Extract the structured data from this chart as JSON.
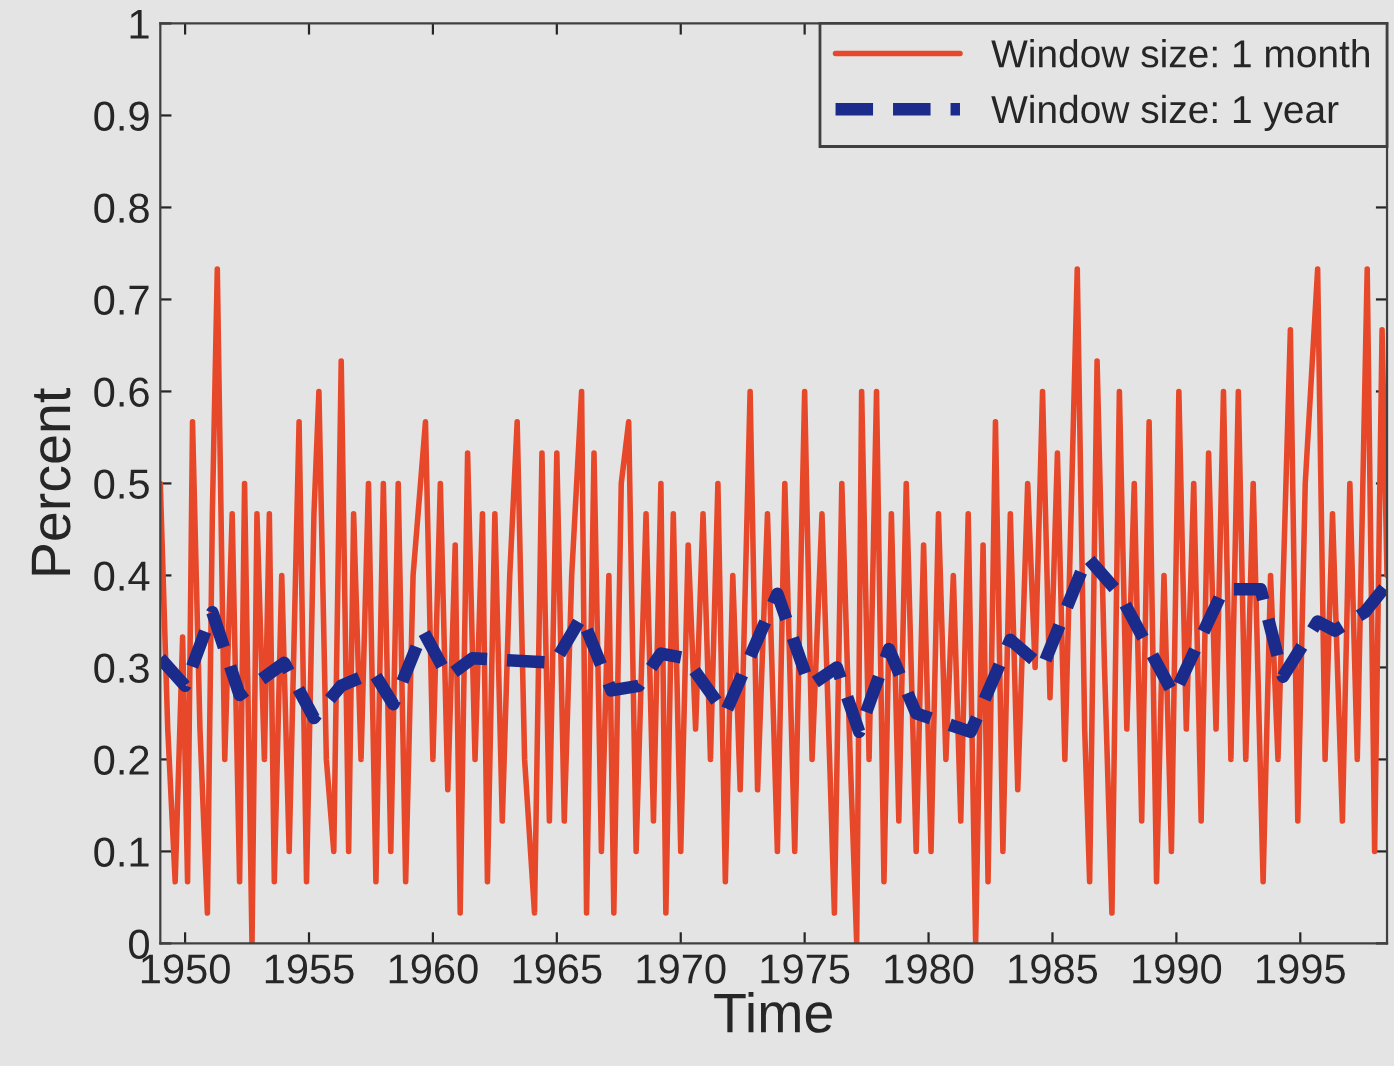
{
  "chart_data": {
    "type": "line",
    "xlabel": "Time",
    "ylabel": "Percent",
    "xlim": [
      1949,
      1998.5
    ],
    "xticks": [
      1950,
      1955,
      1960,
      1965,
      1970,
      1975,
      1980,
      1985,
      1990,
      1995
    ],
    "ylim": [
      0,
      1
    ],
    "yticks": [
      0,
      0.1,
      0.2,
      0.3,
      0.4,
      0.5,
      0.6,
      0.7,
      0.8,
      0.9,
      1
    ],
    "grid": false,
    "legend": "top right",
    "series": [
      {
        "name": "Window size: 1 month",
        "color": "#e8482a",
        "line_style": "solid",
        "x": [
          1949.0,
          1949.3,
          1949.6,
          1949.9,
          1950.1,
          1950.3,
          1950.6,
          1950.9,
          1951.1,
          1951.3,
          1951.6,
          1951.9,
          1952.2,
          1952.4,
          1952.7,
          1952.9,
          1953.2,
          1953.4,
          1953.6,
          1953.9,
          1954.2,
          1954.6,
          1954.9,
          1955.2,
          1955.4,
          1955.7,
          1956.0,
          1956.3,
          1956.6,
          1956.8,
          1957.1,
          1957.4,
          1957.7,
          1958.0,
          1958.3,
          1958.6,
          1958.9,
          1959.2,
          1959.7,
          1960.0,
          1960.3,
          1960.6,
          1960.9,
          1961.1,
          1961.4,
          1961.7,
          1962.0,
          1962.2,
          1962.5,
          1962.8,
          1963.1,
          1963.4,
          1963.7,
          1964.1,
          1964.4,
          1964.7,
          1965.0,
          1965.3,
          1965.6,
          1966.0,
          1966.2,
          1966.5,
          1966.8,
          1967.1,
          1967.3,
          1967.6,
          1967.9,
          1968.2,
          1968.6,
          1968.9,
          1969.2,
          1969.4,
          1969.7,
          1970.0,
          1970.3,
          1970.6,
          1970.9,
          1971.2,
          1971.5,
          1971.8,
          1972.1,
          1972.4,
          1972.8,
          1973.1,
          1973.5,
          1973.9,
          1974.2,
          1974.6,
          1975.0,
          1975.3,
          1975.7,
          1976.2,
          1976.5,
          1976.8,
          1977.1,
          1977.3,
          1977.6,
          1977.9,
          1978.2,
          1978.5,
          1978.8,
          1979.1,
          1979.5,
          1979.8,
          1980.1,
          1980.4,
          1980.7,
          1981.0,
          1981.3,
          1981.6,
          1981.9,
          1982.2,
          1982.4,
          1982.7,
          1983.0,
          1983.3,
          1983.6,
          1984.0,
          1984.3,
          1984.6,
          1984.9,
          1985.2,
          1985.5,
          1986.0,
          1986.3,
          1986.5,
          1986.8,
          1987.1,
          1987.4,
          1987.7,
          1988.0,
          1988.3,
          1988.6,
          1988.9,
          1989.2,
          1989.5,
          1989.8,
          1990.1,
          1990.4,
          1990.7,
          1991.0,
          1991.3,
          1991.6,
          1991.9,
          1992.2,
          1992.5,
          1992.8,
          1993.1,
          1993.5,
          1993.8,
          1994.1,
          1994.6,
          1994.9,
          1995.2,
          1995.7,
          1996.0,
          1996.3,
          1996.7,
          1997.0,
          1997.3,
          1997.7,
          1998.0,
          1998.3,
          1998.5
        ],
        "values": [
          0.5,
          0.233,
          0.067,
          0.333,
          0.067,
          0.567,
          0.233,
          0.033,
          0.467,
          0.733,
          0.2,
          0.467,
          0.067,
          0.5,
          0,
          0.467,
          0.2,
          0.467,
          0.067,
          0.4,
          0.1,
          0.567,
          0.067,
          0.467,
          0.6,
          0.2,
          0.1,
          0.633,
          0.1,
          0.467,
          0.2,
          0.5,
          0.067,
          0.5,
          0.1,
          0.5,
          0.067,
          0.4,
          0.567,
          0.2,
          0.5,
          0.167,
          0.433,
          0.033,
          0.533,
          0.2,
          0.467,
          0.067,
          0.467,
          0.133,
          0.4,
          0.567,
          0.2,
          0.033,
          0.533,
          0.133,
          0.533,
          0.133,
          0.4,
          0.6,
          0.033,
          0.533,
          0.1,
          0.4,
          0.033,
          0.5,
          0.567,
          0.1,
          0.467,
          0.133,
          0.5,
          0.033,
          0.467,
          0.1,
          0.433,
          0.233,
          0.467,
          0.2,
          0.5,
          0.067,
          0.4,
          0.167,
          0.6,
          0.167,
          0.467,
          0.1,
          0.5,
          0.1,
          0.6,
          0.2,
          0.467,
          0.033,
          0.5,
          0.233,
          0,
          0.6,
          0.2,
          0.6,
          0.067,
          0.467,
          0.133,
          0.5,
          0.1,
          0.433,
          0.1,
          0.467,
          0.2,
          0.4,
          0.133,
          0.467,
          0,
          0.433,
          0.067,
          0.567,
          0.1,
          0.467,
          0.167,
          0.5,
          0.3,
          0.6,
          0.267,
          0.533,
          0.2,
          0.733,
          0.233,
          0.067,
          0.633,
          0.3,
          0.033,
          0.6,
          0.233,
          0.5,
          0.133,
          0.567,
          0.067,
          0.4,
          0.1,
          0.6,
          0.233,
          0.5,
          0.133,
          0.533,
          0.233,
          0.6,
          0.2,
          0.6,
          0.2,
          0.5,
          0.067,
          0.4,
          0.2,
          0.667,
          0.133,
          0.5,
          0.733,
          0.2,
          0.467,
          0.133,
          0.5,
          0.2,
          0.733,
          0.1,
          0.667,
          0.4
        ]
      },
      {
        "name": "Window size: 1 year",
        "color": "#1b2b8c",
        "line_style": "dashed",
        "x": [
          1949.0,
          1950.0,
          1951.1,
          1952.2,
          1954.0,
          1955.2,
          1956.3,
          1957.6,
          1958.4,
          1959.6,
          1960.6,
          1961.6,
          1964.9,
          1966.0,
          1967.2,
          1968.3,
          1969.2,
          1970.2,
          1971.8,
          1973.9,
          1975.2,
          1976.3,
          1977.2,
          1978.4,
          1979.5,
          1981.7,
          1983.3,
          1984.6,
          1986.4,
          1987.7,
          1989.9,
          1991.9,
          1993.4,
          1994.3,
          1995.7,
          1996.4,
          1997.6,
          1998.5
        ],
        "values": [
          0.31,
          0.28,
          0.36,
          0.27,
          0.305,
          0.245,
          0.28,
          0.295,
          0.26,
          0.34,
          0.29,
          0.31,
          0.305,
          0.355,
          0.275,
          0.28,
          0.315,
          0.31,
          0.25,
          0.38,
          0.28,
          0.3,
          0.23,
          0.32,
          0.25,
          0.23,
          0.33,
          0.3,
          0.42,
          0.38,
          0.27,
          0.385,
          0.385,
          0.29,
          0.35,
          0.34,
          0.36,
          0.39
        ]
      }
    ]
  }
}
